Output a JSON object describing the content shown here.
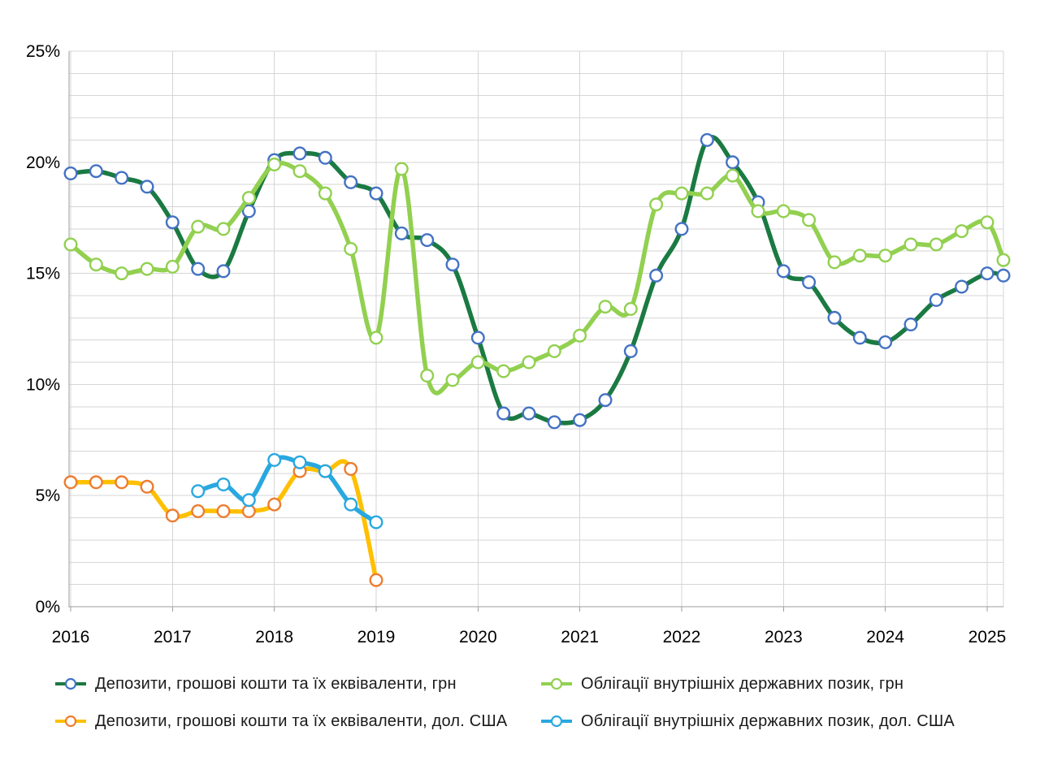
{
  "chart_data": {
    "type": "line",
    "title": "",
    "x_axis": {
      "tick_labels": [
        "2016",
        "2017",
        "2018",
        "2019",
        "2020",
        "2021",
        "2022",
        "2023",
        "2024",
        "2025"
      ],
      "tick_values": [
        2016,
        2017,
        2018,
        2019,
        2020,
        2021,
        2022,
        2023,
        2024,
        2025
      ],
      "range": [
        2016,
        2025.17
      ]
    },
    "y_axis": {
      "tick_labels": [
        "0%",
        "5%",
        "10%",
        "15%",
        "20%",
        "25%"
      ],
      "tick_values": [
        0,
        5,
        10,
        15,
        20,
        25
      ],
      "range": [
        0,
        25
      ],
      "unit": "percent",
      "minor_gridline_step": 1
    },
    "grid": "both",
    "legend_position": "bottom",
    "colors": {
      "gridline": "#d6d6d6",
      "axis": "#9e9e9e",
      "axis_text": "#000000"
    },
    "series": [
      {
        "id": "deposits-uah",
        "name": "Депозити, грошові кошти та їх еквіваленти, грн",
        "color": "#1a7a42",
        "marker_ring_color": "#4472c4",
        "x": [
          2016.0,
          2016.25,
          2016.5,
          2016.75,
          2017.0,
          2017.25,
          2017.5,
          2017.75,
          2018.0,
          2018.25,
          2018.5,
          2018.75,
          2019.0,
          2019.25,
          2019.5,
          2019.75,
          2020.0,
          2020.25,
          2020.5,
          2020.75,
          2021.0,
          2021.25,
          2021.5,
          2021.75,
          2022.0,
          2022.25,
          2022.5,
          2022.75,
          2023.0,
          2023.25,
          2023.5,
          2023.75,
          2024.0,
          2024.25,
          2024.5,
          2024.75,
          2025.0,
          2025.16
        ],
        "values": [
          19.5,
          19.6,
          19.3,
          18.9,
          17.3,
          15.2,
          15.1,
          17.8,
          20.1,
          20.4,
          20.2,
          19.1,
          18.6,
          16.8,
          16.5,
          15.4,
          12.1,
          8.7,
          8.7,
          8.3,
          8.4,
          9.3,
          11.5,
          14.9,
          17.0,
          21.0,
          20.0,
          18.2,
          15.1,
          14.6,
          13.0,
          12.1,
          11.9,
          12.7,
          13.8,
          14.4,
          15.0,
          14.9
        ]
      },
      {
        "id": "bonds-uah",
        "name": "Облігації внутрішніх державних позик, грн",
        "color": "#92d050",
        "marker_ring_color": "#92d050",
        "x": [
          2016.0,
          2016.25,
          2016.5,
          2016.75,
          2017.0,
          2017.25,
          2017.5,
          2017.75,
          2018.0,
          2018.25,
          2018.5,
          2018.75,
          2019.0,
          2019.25,
          2019.5,
          2019.75,
          2020.0,
          2020.25,
          2020.5,
          2020.75,
          2021.0,
          2021.25,
          2021.5,
          2021.75,
          2022.0,
          2022.25,
          2022.5,
          2022.75,
          2023.0,
          2023.25,
          2023.5,
          2023.75,
          2024.0,
          2024.25,
          2024.5,
          2024.75,
          2025.0,
          2025.16
        ],
        "values": [
          16.3,
          15.4,
          15.0,
          15.2,
          15.3,
          17.1,
          17.0,
          18.4,
          19.9,
          19.6,
          18.6,
          16.1,
          12.1,
          19.7,
          10.4,
          10.2,
          11.0,
          10.6,
          11.0,
          11.5,
          12.2,
          13.5,
          13.4,
          18.1,
          18.6,
          18.6,
          19.4,
          17.8,
          17.8,
          17.4,
          15.5,
          15.8,
          15.8,
          16.3,
          16.3,
          16.9,
          17.3,
          15.6
        ]
      },
      {
        "id": "deposits-usd",
        "name": "Депозити, грошові кошти та їх еквіваленти, дол. США",
        "color": "#ffc000",
        "marker_ring_color": "#ed7d31",
        "x": [
          2016.0,
          2016.25,
          2016.5,
          2016.75,
          2017.0,
          2017.25,
          2017.5,
          2017.75,
          2018.0,
          2018.25,
          2018.5,
          2018.75,
          2019.0
        ],
        "values": [
          5.6,
          5.6,
          5.6,
          5.4,
          4.1,
          4.3,
          4.3,
          4.3,
          4.6,
          6.1,
          6.1,
          6.2,
          1.2
        ]
      },
      {
        "id": "bonds-usd",
        "name": "Облігації внутрішніх державних позик, дол. США",
        "color": "#29a8e0",
        "marker_ring_color": "#29a8e0",
        "x": [
          2017.25,
          2017.5,
          2017.75,
          2018.0,
          2018.25,
          2018.5,
          2018.75,
          2019.0
        ],
        "values": [
          5.2,
          5.5,
          4.8,
          6.6,
          6.5,
          6.1,
          4.6,
          3.8
        ]
      }
    ]
  }
}
